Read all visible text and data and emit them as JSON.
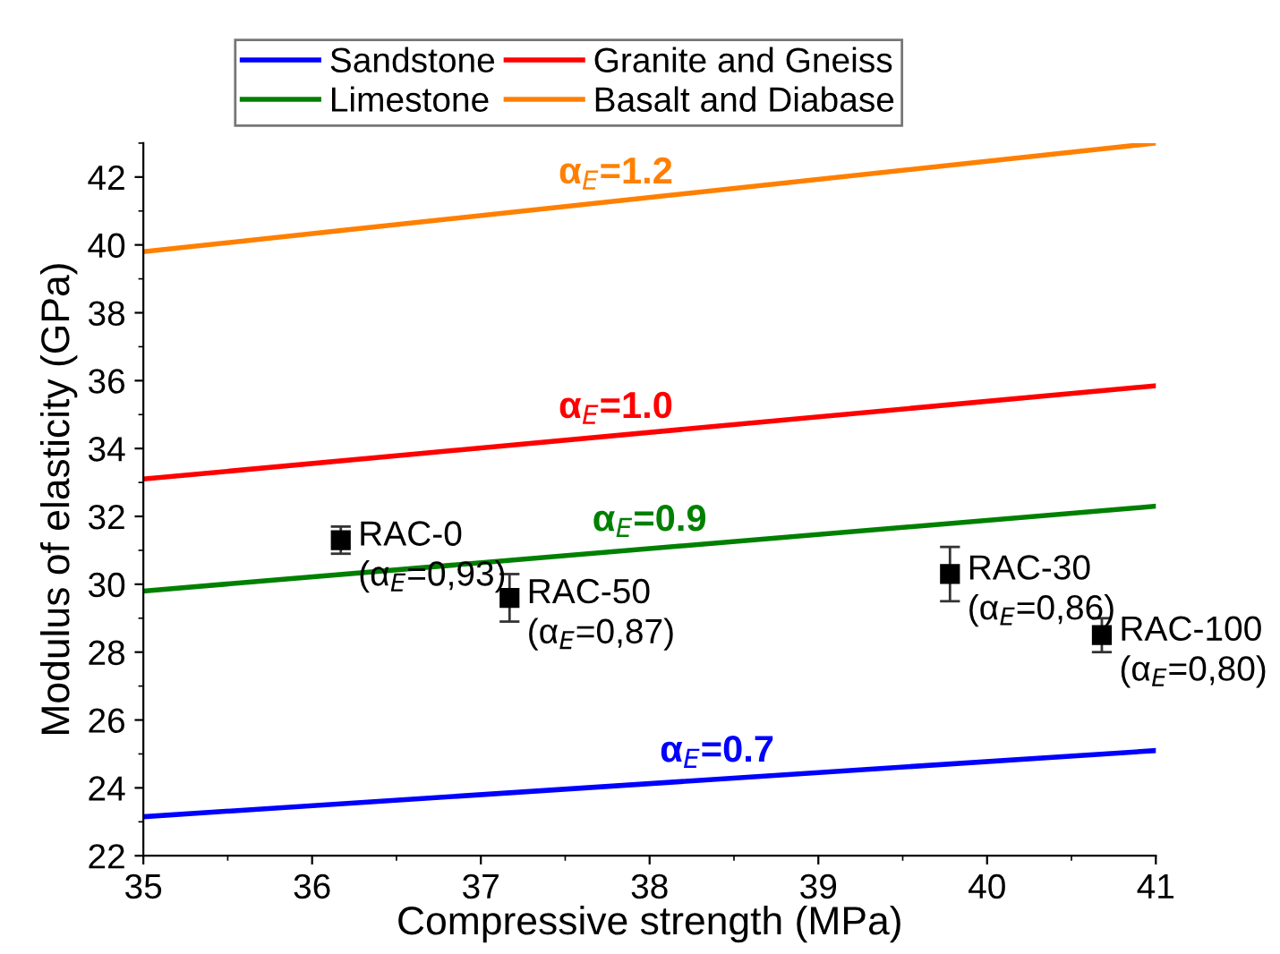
{
  "chart_data": {
    "type": "line",
    "xlabel": "Compressive strength (MPa)",
    "ylabel": "Modulus of elasticity (GPa)",
    "xlim": [
      35,
      41
    ],
    "xticks": [
      35,
      36,
      37,
      38,
      39,
      40,
      41
    ],
    "ylim": [
      22,
      43
    ],
    "yticks": [
      22,
      24,
      26,
      28,
      30,
      32,
      34,
      36,
      38,
      40,
      42
    ],
    "legend": "top",
    "grid": false,
    "marker": "none",
    "line_style": "solid",
    "series": [
      {
        "name": "Sandstone",
        "color": "#0000ff",
        "x": [
          35,
          41
        ],
        "values": [
          23.15,
          25.1
        ]
      },
      {
        "name": "Limestone",
        "color": "#008000",
        "x": [
          35,
          41
        ],
        "values": [
          29.8,
          32.3
        ]
      },
      {
        "name": "Granite and Gneiss",
        "color": "#ff0000",
        "x": [
          35,
          41
        ],
        "values": [
          33.1,
          35.85
        ]
      },
      {
        "name": "Basalt and Diabase",
        "color": "#ff8000",
        "x": [
          35,
          41
        ],
        "values": [
          39.8,
          43.0
        ]
      },
      {
        "type": "scatter",
        "marker": "square",
        "color": "#000000",
        "x": [
          36.17,
          37.17,
          39.78,
          40.68
        ],
        "values": [
          31.3,
          29.6,
          30.3,
          28.5
        ],
        "errors": [
          0.4,
          0.7,
          0.8,
          0.5
        ]
      }
    ],
    "annotations": [
      {
        "text": "α$_{E}$=1.2",
        "x": 37.8,
        "y": 41.29
      },
      {
        "text": "α$_{E}$=1.0",
        "x": 37.8,
        "y": 34.38
      },
      {
        "text": "α$_{E}$=0.9",
        "x": 38.0,
        "y": 31.05
      },
      {
        "text": "α$_{E}$=0.7",
        "x": 38.4,
        "y": 24.25
      },
      {
        "text": "RAC-0\n(α$_{E}$=0,93)",
        "x": 36.17,
        "y": 31.3
      },
      {
        "text": "RAC-50\n(α$_{E}$=0,87)",
        "x": 37.17,
        "y": 29.6
      },
      {
        "text": "RAC-30\n(α$_{E}$=0,86)",
        "x": 39.78,
        "y": 30.3
      },
      {
        "text": "RAC-100\n(α$_{E}$=0,80)",
        "x": 40.68,
        "y": 28.5
      }
    ]
  }
}
